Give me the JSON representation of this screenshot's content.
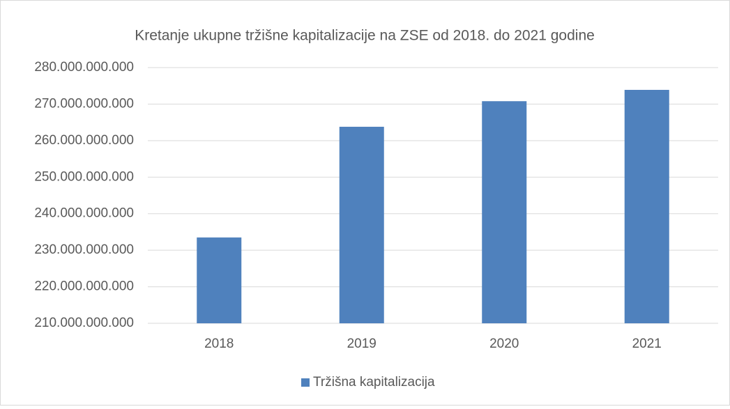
{
  "chart_data": {
    "type": "bar",
    "title": "Kretanje ukupne tržišne kapitalizacije na ZSE od 2018. do 2021 godine",
    "categories": [
      "2018",
      "2019",
      "2020",
      "2021"
    ],
    "series": [
      {
        "name": "Tržišna kapitalizacija",
        "color": "#4f81bd",
        "values": [
          233500000000,
          263800000000,
          270800000000,
          273900000000
        ]
      }
    ],
    "ylim": [
      210000000000,
      280000000000
    ],
    "yticks": [
      {
        "value": 210000000000,
        "label": "210.000.000.000"
      },
      {
        "value": 220000000000,
        "label": "220.000.000.000"
      },
      {
        "value": 230000000000,
        "label": "230.000.000.000"
      },
      {
        "value": 240000000000,
        "label": "240.000.000.000"
      },
      {
        "value": 250000000000,
        "label": "250.000.000.000"
      },
      {
        "value": 260000000000,
        "label": "260.000.000.000"
      },
      {
        "value": 270000000000,
        "label": "270.000.000.000"
      },
      {
        "value": 280000000000,
        "label": "280.000.000.000"
      }
    ],
    "grid": true,
    "legend": "bottom"
  }
}
